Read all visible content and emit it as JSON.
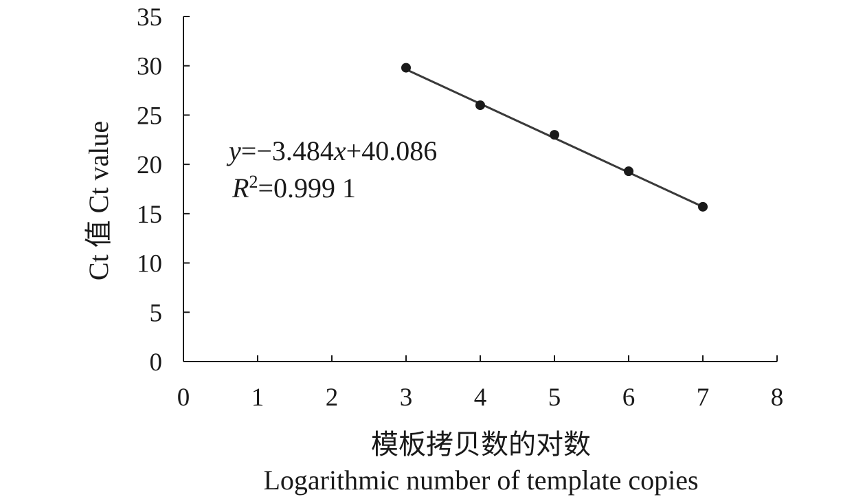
{
  "chart_data": {
    "type": "scatter",
    "title": "",
    "xlabel_lines": [
      "模板拷贝数的对数",
      "Logarithmic number of template copies"
    ],
    "ylabel": "Ct 值 Ct value",
    "xlim": [
      0,
      8
    ],
    "ylim": [
      0,
      35
    ],
    "x_ticks": [
      "0",
      "1",
      "2",
      "3",
      "4",
      "5",
      "6",
      "7",
      "8"
    ],
    "y_ticks": [
      "0",
      "5",
      "10",
      "15",
      "20",
      "25",
      "30",
      "35"
    ],
    "grid": false,
    "legend": "none",
    "series": [
      {
        "x": [
          3,
          4,
          5,
          6,
          7
        ],
        "y": [
          29.8,
          26.0,
          23.0,
          19.3,
          15.7
        ]
      }
    ],
    "trendline": {
      "slope": -3.484,
      "intercept": 40.086,
      "x_range": [
        3,
        7
      ]
    },
    "annotation": {
      "equation": {
        "y": "y",
        "eq_slope": "=−3.484",
        "x": "x",
        "eq_intercept": "+40.086"
      },
      "r2": {
        "R": "R",
        "sup": "2",
        "value": "=0.999 1"
      }
    },
    "colors": {
      "axis": "#1a1a1a",
      "line": "#3a3a3a",
      "marker": "#1a1a1a"
    }
  }
}
